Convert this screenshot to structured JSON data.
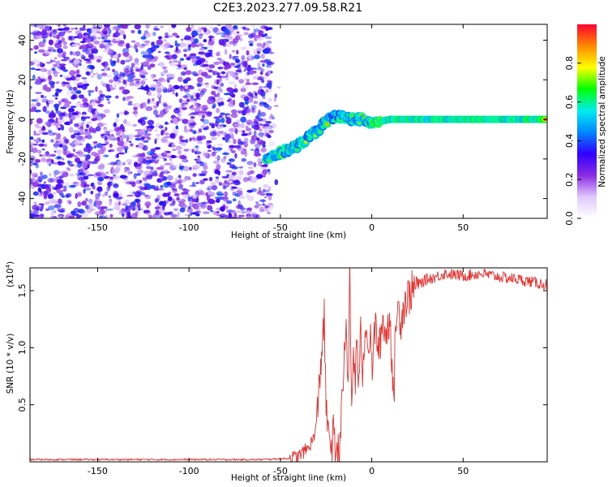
{
  "title": "C2E3.2023.277.09.58.R21",
  "chart_data": [
    {
      "type": "heatmap",
      "xlabel": "Height of straight line (km)",
      "ylabel": "Frequency (Hz)",
      "xlim": [
        -187,
        96
      ],
      "ylim": [
        -50,
        48
      ],
      "xticks": [
        "-150",
        "-100",
        "-50",
        "0",
        "50"
      ],
      "yticks": [
        "-40",
        "-20",
        "0",
        "20",
        "40"
      ],
      "colorbar": {
        "label": "Normalized spectral amplitude",
        "range": [
          0,
          1
        ],
        "ticks": [
          "0.0",
          "0.2",
          "0.4",
          "0.6",
          "0.8"
        ],
        "colors": [
          "#ffffff",
          "#e0c8ff",
          "#8a2be2",
          "#3000ff",
          "#0088ff",
          "#00eeee",
          "#00ff00",
          "#ffff00",
          "#ff8800",
          "#ff0030"
        ]
      },
      "noise_region": {
        "x_from": -187,
        "x_to": -55,
        "level": 0.35
      },
      "signal_trace": {
        "x": [
          -58,
          -50,
          -40,
          -30,
          -25,
          -20,
          -15,
          -10,
          -5,
          0,
          5,
          10,
          20,
          30,
          50,
          70,
          95
        ],
        "y": [
          -20,
          -17,
          -13,
          -6,
          -1,
          2,
          1,
          0,
          0,
          -2,
          -1,
          0,
          0,
          0,
          0,
          0,
          0
        ]
      }
    },
    {
      "type": "line",
      "xlabel": "Height of straight line (km)",
      "ylabel": "SNR (10 * v/v)",
      "yscale_label": "(x10",
      "yscale_exp": "4",
      "xlim": [
        -187,
        96
      ],
      "ylim": [
        0,
        1.7
      ],
      "xticks": [
        "-150",
        "-100",
        "-50",
        "0",
        "50"
      ],
      "yticks": [
        "0.5",
        "1.0",
        "1.5"
      ],
      "color": "#e8312f",
      "series": [
        {
          "x": [
            -187,
            -150,
            -100,
            -60,
            -45,
            -40,
            -35,
            -32,
            -30,
            -28,
            -26,
            -25,
            -24,
            -23,
            -22,
            -21,
            -20,
            -19,
            -18,
            -17,
            -16,
            -15,
            -14,
            -13,
            -12,
            -11,
            -10,
            -9,
            -8,
            -7,
            -6,
            -5,
            -4,
            -3,
            -2,
            -1,
            0,
            2,
            4,
            6,
            8,
            10,
            12,
            13,
            14,
            16,
            18,
            20,
            22,
            25,
            30,
            35,
            40,
            50,
            60,
            70,
            80,
            90,
            96
          ],
          "y": [
            0.02,
            0.02,
            0.02,
            0.02,
            0.03,
            0.05,
            0.12,
            0.2,
            0.35,
            0.85,
            1.25,
            0.5,
            0.2,
            0.3,
            0.1,
            0.25,
            0.08,
            0.15,
            0.05,
            0.3,
            0.55,
            0.9,
            1.25,
            0.6,
            1.65,
            0.4,
            1.0,
            0.7,
            1.1,
            0.6,
            1.2,
            0.75,
            1.1,
            1.3,
            0.9,
            1.15,
            0.8,
            1.2,
            0.95,
            1.25,
            1.1,
            1.3,
            0.45,
            1.2,
            1.35,
            1.25,
            1.4,
            1.45,
            1.5,
            1.55,
            1.6,
            1.62,
            1.65,
            1.63,
            1.65,
            1.62,
            1.6,
            1.57,
            1.55
          ]
        }
      ]
    }
  ]
}
